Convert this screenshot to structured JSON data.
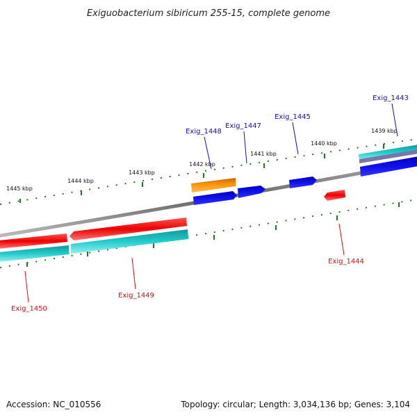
{
  "title": "Exiguobacterium sibiricum 255-15, complete genome",
  "footer": {
    "accession": "Accession: NC_010556",
    "summary": "Topology: circular; Length: 3,034,136 bp; Genes: 3,104"
  },
  "colors": {
    "backbone": "#808080",
    "cds_red": "#ee1111",
    "cds_cyan": "#11bbbb",
    "cds_blue": "#1111dd",
    "cds_orange": "#ff9910",
    "tick": "#227722",
    "label_red": "#cc1111",
    "label_blue": "#1111aa"
  },
  "scale": {
    "ticks": [
      {
        "label": "1445 kbp"
      },
      {
        "label": "1444 kbp"
      },
      {
        "label": "1443 kbp"
      },
      {
        "label": "1442 kbp"
      },
      {
        "label": "1441 kbp"
      },
      {
        "label": "1440 kbp"
      },
      {
        "label": "1439 kbp"
      }
    ]
  },
  "genes": [
    {
      "name": "Exig_1443",
      "strand": "forward"
    },
    {
      "name": "Exig_1444",
      "strand": "reverse"
    },
    {
      "name": "Exig_1445",
      "strand": "forward"
    },
    {
      "name": "Exig_1447",
      "strand": "forward"
    },
    {
      "name": "Exig_1448",
      "strand": "forward"
    },
    {
      "name": "Exig_1449",
      "strand": "reverse"
    },
    {
      "name": "Exig_1450",
      "strand": "reverse"
    }
  ]
}
